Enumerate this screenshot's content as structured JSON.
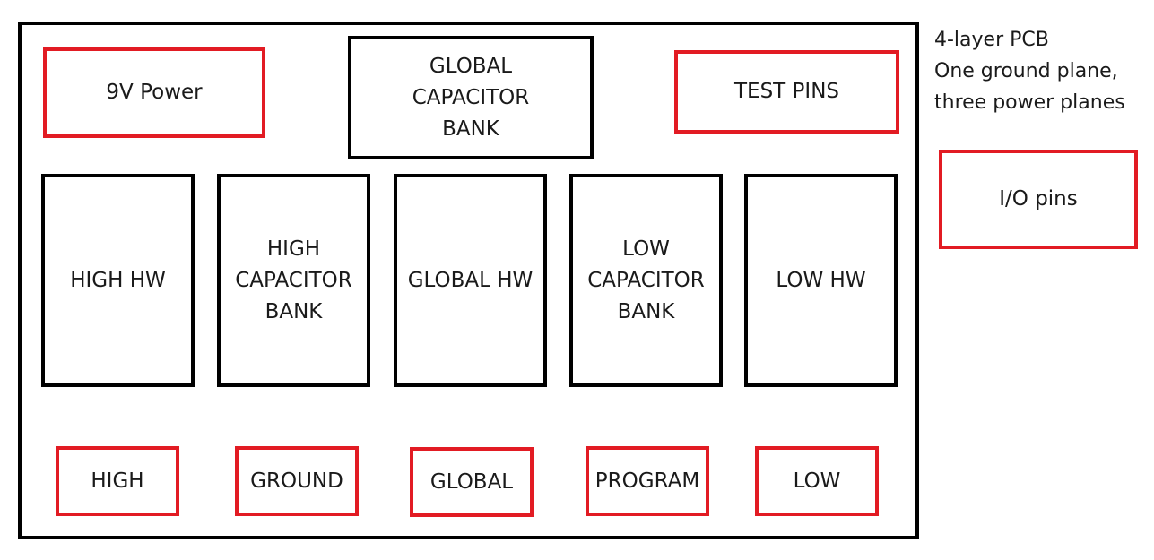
{
  "notes": [
    "4-layer PCB",
    "One ground plane,",
    "three power planes"
  ],
  "blocks": {
    "power_9v": "9V Power",
    "global_capacitor_bank": [
      "GLOBAL",
      "CAPACITOR",
      "BANK"
    ],
    "test_pins": "TEST PINS",
    "io_pins": "I/O pins",
    "high_hw": "HIGH HW",
    "high_capacitor_bank": [
      "HIGH",
      "CAPACITOR",
      "BANK"
    ],
    "global_hw": "GLOBAL HW",
    "low_capacitor_bank": [
      "LOW",
      "CAPACITOR",
      "BANK"
    ],
    "low_hw": "LOW HW"
  },
  "connectors": [
    "HIGH",
    "GROUND",
    "GLOBAL",
    "PROGRAM",
    "LOW"
  ],
  "colors": {
    "structure": "#000000",
    "connector": "#e21b23"
  }
}
